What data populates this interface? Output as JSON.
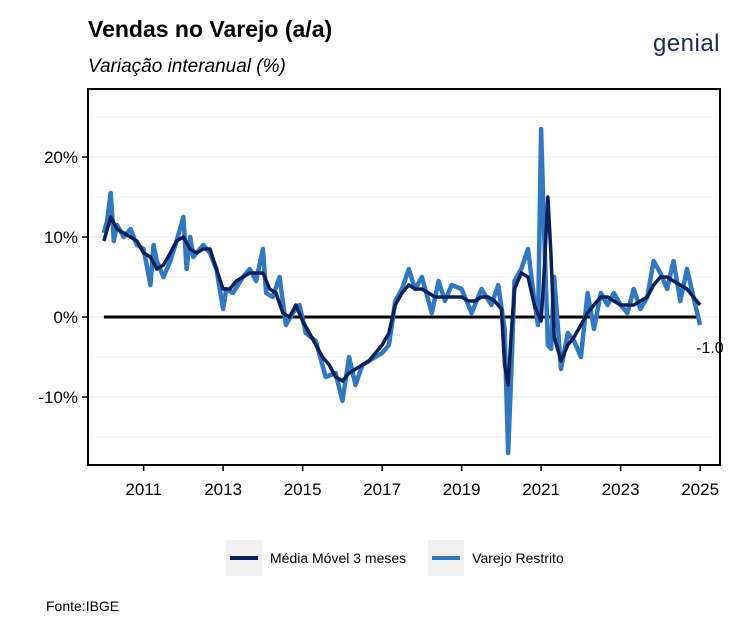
{
  "header": {
    "title": "Vendas no Varejo (a/a)",
    "subtitle": "Variação interanual (%)",
    "logo": "genial"
  },
  "footer": {
    "source": "Fonte:IBGE"
  },
  "colors": {
    "moving_average": "#0b1f5c",
    "retail": "#2f78c4",
    "zero_line": "#000000"
  },
  "chart_data": {
    "type": "line",
    "title": "Vendas no Varejo (a/a)",
    "subtitle": "Variação interanual (%)",
    "xlabel": "",
    "ylabel": "",
    "xlim": [
      2009.6,
      2025.5
    ],
    "ylim": [
      -18.5,
      28.5
    ],
    "x_ticks": [
      2011,
      2013,
      2015,
      2017,
      2019,
      2021,
      2023,
      2025
    ],
    "x_tick_labels": [
      "2011",
      "2013",
      "2015",
      "2017",
      "2019",
      "2021",
      "2023",
      "2025"
    ],
    "y_ticks": [
      -10,
      0,
      10,
      20
    ],
    "y_tick_labels": [
      "-10%",
      "0%",
      "10%",
      "20%"
    ],
    "grid": true,
    "legend_position": "bottom",
    "last_value_label": "-1.0",
    "reference_line": {
      "y": 0
    },
    "series": [
      {
        "name": "Varejo Restrito",
        "x": [
          2010.0,
          2010.08,
          2010.17,
          2010.25,
          2010.33,
          2010.5,
          2010.67,
          2010.83,
          2011.0,
          2011.17,
          2011.25,
          2011.33,
          2011.5,
          2011.67,
          2011.83,
          2012.0,
          2012.08,
          2012.17,
          2012.25,
          2012.5,
          2012.67,
          2012.83,
          2013.0,
          2013.08,
          2013.25,
          2013.5,
          2013.67,
          2013.83,
          2014.0,
          2014.08,
          2014.25,
          2014.42,
          2014.58,
          2014.75,
          2014.92,
          2015.08,
          2015.33,
          2015.58,
          2015.83,
          2016.0,
          2016.17,
          2016.33,
          2016.5,
          2016.67,
          2016.83,
          2017.0,
          2017.17,
          2017.33,
          2017.5,
          2017.67,
          2017.83,
          2018.0,
          2018.25,
          2018.42,
          2018.58,
          2018.75,
          2019.0,
          2019.25,
          2019.5,
          2019.75,
          2019.92,
          2020.08,
          2020.17,
          2020.25,
          2020.33,
          2020.5,
          2020.67,
          2020.83,
          2020.92,
          2021.0,
          2021.08,
          2021.17,
          2021.25,
          2021.33,
          2021.5,
          2021.67,
          2021.83,
          2022.0,
          2022.17,
          2022.33,
          2022.5,
          2022.67,
          2022.83,
          2023.0,
          2023.17,
          2023.33,
          2023.5,
          2023.67,
          2023.83,
          2024.0,
          2024.17,
          2024.33,
          2024.5,
          2024.67,
          2024.83,
          2025.0
        ],
        "values": [
          10.5,
          12.0,
          15.5,
          9.5,
          11.5,
          10.0,
          11.0,
          9.0,
          8.5,
          4.0,
          9.0,
          7.0,
          5.0,
          7.0,
          9.5,
          12.5,
          6.0,
          10.0,
          7.5,
          9.0,
          8.0,
          6.0,
          1.0,
          3.5,
          3.0,
          5.0,
          6.0,
          4.5,
          8.5,
          3.0,
          2.5,
          5.0,
          -1.0,
          0.5,
          1.5,
          -2.0,
          -3.0,
          -7.5,
          -7.0,
          -10.5,
          -5.0,
          -8.5,
          -6.0,
          -5.5,
          -5.0,
          -4.5,
          -3.5,
          2.0,
          3.5,
          6.0,
          3.5,
          5.0,
          0.5,
          4.5,
          2.0,
          4.0,
          3.5,
          0.5,
          3.5,
          1.5,
          4.0,
          -1.5,
          -17.0,
          -7.0,
          4.5,
          6.0,
          8.5,
          2.0,
          -1.0,
          23.5,
          10.0,
          -3.5,
          -4.0,
          5.0,
          -6.5,
          -2.0,
          -3.0,
          -5.0,
          3.0,
          -1.5,
          3.0,
          1.5,
          3.0,
          1.5,
          0.5,
          3.5,
          1.0,
          2.5,
          7.0,
          5.5,
          3.5,
          7.0,
          2.0,
          6.0,
          2.5,
          -1.0
        ]
      },
      {
        "name": "Média Móvel 3 meses",
        "x": [
          2010.0,
          2010.17,
          2010.33,
          2010.5,
          2010.67,
          2010.83,
          2011.0,
          2011.17,
          2011.33,
          2011.5,
          2011.67,
          2011.83,
          2012.0,
          2012.17,
          2012.33,
          2012.5,
          2012.67,
          2012.83,
          2013.0,
          2013.17,
          2013.33,
          2013.5,
          2013.67,
          2013.83,
          2014.0,
          2014.17,
          2014.33,
          2014.5,
          2014.67,
          2014.83,
          2015.0,
          2015.17,
          2015.33,
          2015.5,
          2015.67,
          2015.83,
          2016.0,
          2016.17,
          2016.33,
          2016.5,
          2016.67,
          2016.83,
          2017.0,
          2017.17,
          2017.33,
          2017.5,
          2017.67,
          2017.83,
          2018.0,
          2018.17,
          2018.33,
          2018.5,
          2018.67,
          2018.83,
          2019.0,
          2019.17,
          2019.33,
          2019.5,
          2019.67,
          2019.83,
          2020.0,
          2020.08,
          2020.17,
          2020.25,
          2020.33,
          2020.5,
          2020.67,
          2020.83,
          2021.0,
          2021.08,
          2021.17,
          2021.25,
          2021.33,
          2021.5,
          2021.67,
          2021.83,
          2022.0,
          2022.17,
          2022.33,
          2022.5,
          2022.67,
          2022.83,
          2023.0,
          2023.17,
          2023.33,
          2023.5,
          2023.67,
          2023.83,
          2024.0,
          2024.17,
          2024.33,
          2024.5,
          2024.67,
          2024.83,
          2025.0
        ],
        "values": [
          9.5,
          12.5,
          11.0,
          10.5,
          10.0,
          9.5,
          8.0,
          7.5,
          6.0,
          6.5,
          8.0,
          9.5,
          10.0,
          8.5,
          8.0,
          8.5,
          8.5,
          6.0,
          3.5,
          3.5,
          4.5,
          5.0,
          5.5,
          5.5,
          5.5,
          3.5,
          3.0,
          0.5,
          0.0,
          1.5,
          -0.5,
          -2.0,
          -3.5,
          -5.0,
          -6.0,
          -7.5,
          -8.0,
          -7.0,
          -6.5,
          -6.0,
          -5.5,
          -4.5,
          -3.5,
          -2.0,
          1.5,
          3.0,
          4.0,
          3.5,
          3.5,
          3.0,
          2.5,
          2.5,
          2.5,
          2.5,
          2.5,
          2.0,
          2.0,
          2.5,
          2.5,
          2.0,
          1.0,
          -6.0,
          -8.5,
          -2.0,
          3.5,
          5.5,
          5.0,
          1.5,
          -0.5,
          6.0,
          15.0,
          7.5,
          -2.5,
          -5.5,
          -3.5,
          -2.5,
          -1.0,
          0.5,
          1.5,
          2.5,
          2.5,
          2.0,
          1.5,
          1.5,
          1.5,
          2.0,
          2.5,
          4.0,
          5.0,
          5.0,
          4.5,
          4.0,
          3.5,
          2.5,
          1.5
        ]
      }
    ]
  }
}
